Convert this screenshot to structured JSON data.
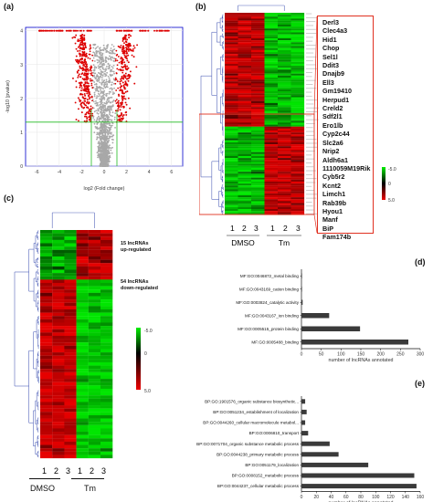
{
  "panels": {
    "a": {
      "letter": "(a)",
      "ylabel": "-log10 (pvalue)",
      "xlabel": "log2 (Fold change)",
      "xticks": [
        "-6",
        "-4",
        "-2",
        "0",
        "2",
        "4",
        "6"
      ],
      "yticks": [
        "0",
        "1",
        "2",
        "3",
        "4"
      ],
      "colors": {
        "significant": "#dd0000",
        "nonsignificant": "#a8a8a8",
        "threshold": "#22bb22",
        "frame": "#0000cc"
      }
    },
    "b": {
      "letter": "(b)",
      "columns": [
        "1",
        "2",
        "3",
        "1",
        "2",
        "3"
      ],
      "groups": [
        "DMSO",
        "Tm"
      ],
      "legend_ticks": [
        "-5.0",
        "0",
        "5.0"
      ],
      "genes": [
        "Derl3",
        "Clec4a3",
        "Hid1",
        "Chop",
        "Sel1l",
        "Ddit3",
        "Dnajb9",
        "Ell3",
        "Gm19410",
        "Herpud1",
        "Creld2",
        "Sdf2l1",
        "Ero1lb",
        "Cyp2c44",
        "Slc2a6",
        "Nrip2",
        "Aldh6a1",
        "1110059M19Rik",
        "Cyb5r2",
        "Kcnt2",
        "Limch1",
        "Rab39b",
        "Hyou1",
        "Manf",
        "BiP",
        "Fam174b"
      ],
      "colors": {
        "box": "#e03020"
      }
    },
    "c": {
      "letter": "(c)",
      "columns": [
        "1",
        "2",
        "3",
        "1",
        "2",
        "3"
      ],
      "groups": [
        "DMSO",
        "Tm"
      ],
      "up_label": [
        "15 lncRNAs",
        "up-regulated"
      ],
      "down_label": [
        "54 lncRNAs",
        "down-regulated"
      ],
      "legend_ticks": [
        "-5.0",
        "0",
        "5.0"
      ]
    },
    "d": {
      "letter": "(d)",
      "xlabel": "number of lncRNAs annotated"
    },
    "e": {
      "letter": "(e)",
      "xlabel": "number of lncRNAs annotated"
    }
  },
  "chart_data": [
    {
      "type": "bar",
      "panel": "d",
      "orientation": "horizontal",
      "categories": [
        "MF:GO:0046872_metal binding",
        "MF:GO:0043169_cation binding",
        "MF:GO:0003824_catalytic activity",
        "MF:GO:0043167_ion binding",
        "MF:GO:0005515_protein binding",
        "MF:GO:0005488_binding"
      ],
      "values": [
        1,
        1,
        3,
        70,
        148,
        270
      ],
      "xlabel": "number of lncRNAs annotated",
      "xticks": [
        0,
        50,
        100,
        150,
        200,
        250,
        300
      ],
      "xlim": [
        0,
        300
      ]
    },
    {
      "type": "bar",
      "panel": "e",
      "orientation": "horizontal",
      "categories": [
        "BP:GO:1901576_organic substance biosynthetic...",
        "BP:GO:0051234_establishment of localization",
        "BP:GO:0044260_cellular macromolecule metabol...",
        "BP:GO:0006810_transport",
        "BP:GO:0071704_organic substance metabolic process",
        "BP:GO:0044238_primary metabolic process",
        "BP:GO:0051179_localization",
        "BP:GO:0008152_metabolic process",
        "BP:GO:0044237_cellular metabolic process"
      ],
      "values": [
        5,
        7,
        5,
        9,
        38,
        50,
        90,
        152,
        155
      ],
      "xlabel": "number of lncRNAs annotated",
      "xticks": [
        0,
        20,
        40,
        60,
        80,
        100,
        120,
        140,
        160
      ],
      "xlim": [
        0,
        160
      ]
    }
  ]
}
